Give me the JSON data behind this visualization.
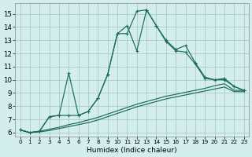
{
  "xlabel": "Humidex (Indice chaleur)",
  "background_color": "#d4eeee",
  "grid_color": "#aacccc",
  "line_color": "#1a6b5a",
  "x_ticks": [
    0,
    1,
    2,
    3,
    4,
    5,
    6,
    7,
    8,
    9,
    10,
    11,
    12,
    13,
    14,
    15,
    16,
    17,
    18,
    19,
    20,
    21,
    22,
    23
  ],
  "y_ticks": [
    6,
    7,
    8,
    9,
    10,
    11,
    12,
    13,
    14,
    15
  ],
  "ylim": [
    5.7,
    15.8
  ],
  "xlim": [
    -0.5,
    23.5
  ],
  "line1": [
    6.2,
    6.0,
    6.1,
    7.2,
    7.3,
    7.3,
    7.3,
    7.6,
    8.6,
    10.4,
    13.5,
    13.5,
    15.2,
    15.3,
    14.1,
    12.9,
    12.2,
    12.1,
    11.2,
    10.1,
    10.0,
    10.0,
    9.5,
    9.2
  ],
  "line2": [
    6.2,
    6.0,
    6.1,
    7.2,
    7.3,
    10.5,
    7.3,
    7.6,
    8.6,
    10.4,
    13.5,
    14.1,
    12.2,
    15.3,
    14.1,
    13.0,
    12.3,
    12.6,
    11.3,
    10.2,
    10.0,
    10.1,
    9.5,
    9.2
  ],
  "line3": [
    6.2,
    6.0,
    6.05,
    6.15,
    6.3,
    6.45,
    6.6,
    6.75,
    6.95,
    7.2,
    7.45,
    7.7,
    7.95,
    8.15,
    8.35,
    8.55,
    8.7,
    8.85,
    9.0,
    9.15,
    9.3,
    9.45,
    9.1,
    9.1
  ],
  "line4": [
    6.2,
    6.0,
    6.1,
    6.25,
    6.4,
    6.6,
    6.75,
    6.95,
    7.15,
    7.4,
    7.65,
    7.9,
    8.15,
    8.35,
    8.55,
    8.75,
    8.9,
    9.05,
    9.2,
    9.35,
    9.55,
    9.7,
    9.2,
    9.2
  ]
}
